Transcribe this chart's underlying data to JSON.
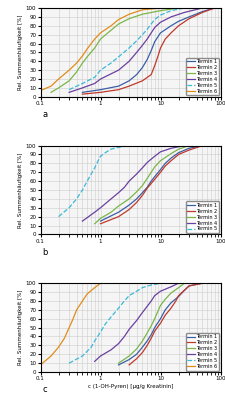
{
  "background_color": "#f5f5f5",
  "grid_color": "#cccccc",
  "ylabel": "Rel. Summenhäufigkeit [%]",
  "xlabel": "c (1-OH-Pyren) [µg/g Kreatinin]",
  "xlim": [
    0.1,
    100
  ],
  "ylim": [
    0,
    100
  ],
  "yticks": [
    0,
    10,
    20,
    30,
    40,
    50,
    60,
    70,
    80,
    90,
    100
  ],
  "colors": {
    "Termin 1": "#3b5ea6",
    "Termin 2": "#c0392b",
    "Termin 3": "#7ab648",
    "Termin 4": "#6b3fa0",
    "Termin 5": "#3ab8d8",
    "Termin 6": "#e08c1a"
  },
  "panels": [
    {
      "label": "a",
      "legend_entries": [
        "Termin 1",
        "Termin 2",
        "Termin 3",
        "Termin 4",
        "Termin 5",
        "Termin 6"
      ],
      "series": {
        "Termin 1": [
          [
            0.5,
            5
          ],
          [
            1.0,
            8
          ],
          [
            2.0,
            12
          ],
          [
            3.0,
            18
          ],
          [
            4.0,
            25
          ],
          [
            5.0,
            33
          ],
          [
            6.0,
            42
          ],
          [
            7.0,
            52
          ],
          [
            8.0,
            62
          ],
          [
            10.0,
            72
          ],
          [
            15.0,
            80
          ],
          [
            20.0,
            85
          ],
          [
            30.0,
            90
          ],
          [
            50.0,
            96
          ],
          [
            80.0,
            100
          ]
        ],
        "Termin 2": [
          [
            0.5,
            3
          ],
          [
            1.0,
            5
          ],
          [
            2.0,
            8
          ],
          [
            3.0,
            12
          ],
          [
            5.0,
            18
          ],
          [
            7.0,
            25
          ],
          [
            8.0,
            35
          ],
          [
            9.0,
            45
          ],
          [
            10.0,
            55
          ],
          [
            12.0,
            65
          ],
          [
            15.0,
            72
          ],
          [
            20.0,
            80
          ],
          [
            30.0,
            88
          ],
          [
            50.0,
            95
          ],
          [
            80.0,
            100
          ]
        ],
        "Termin 3": [
          [
            0.15,
            5
          ],
          [
            0.2,
            10
          ],
          [
            0.3,
            18
          ],
          [
            0.4,
            28
          ],
          [
            0.5,
            38
          ],
          [
            0.6,
            45
          ],
          [
            0.8,
            55
          ],
          [
            1.0,
            65
          ],
          [
            1.5,
            75
          ],
          [
            2.0,
            82
          ],
          [
            3.0,
            88
          ],
          [
            5.0,
            93
          ],
          [
            10.0,
            97
          ],
          [
            20.0,
            100
          ]
        ],
        "Termin 4": [
          [
            0.3,
            5
          ],
          [
            0.5,
            10
          ],
          [
            0.8,
            15
          ],
          [
            1.0,
            20
          ],
          [
            2.0,
            30
          ],
          [
            3.0,
            40
          ],
          [
            4.0,
            50
          ],
          [
            5.0,
            58
          ],
          [
            6.0,
            65
          ],
          [
            7.0,
            72
          ],
          [
            8.0,
            78
          ],
          [
            10.0,
            84
          ],
          [
            15.0,
            90
          ],
          [
            25.0,
            95
          ],
          [
            50.0,
            100
          ]
        ],
        "Termin 5": [
          [
            0.3,
            8
          ],
          [
            0.5,
            15
          ],
          [
            0.8,
            22
          ],
          [
            1.0,
            30
          ],
          [
            1.5,
            38
          ],
          [
            2.0,
            45
          ],
          [
            3.0,
            55
          ],
          [
            4.0,
            63
          ],
          [
            5.0,
            70
          ],
          [
            6.0,
            76
          ],
          [
            7.0,
            82
          ],
          [
            8.0,
            87
          ],
          [
            10.0,
            92
          ],
          [
            15.0,
            97
          ],
          [
            25.0,
            100
          ]
        ],
        "Termin 6": [
          [
            0.1,
            7
          ],
          [
            0.15,
            12
          ],
          [
            0.2,
            20
          ],
          [
            0.3,
            30
          ],
          [
            0.4,
            38
          ],
          [
            0.5,
            46
          ],
          [
            0.6,
            54
          ],
          [
            0.7,
            60
          ],
          [
            0.8,
            65
          ],
          [
            1.0,
            72
          ],
          [
            1.5,
            80
          ],
          [
            2.0,
            87
          ],
          [
            3.0,
            93
          ],
          [
            5.0,
            98
          ],
          [
            10.0,
            100
          ]
        ]
      },
      "dashed": [
        "Termin 5"
      ]
    },
    {
      "label": "b",
      "legend_entries": [
        "Termin 1",
        "Termin 2",
        "Termin 3",
        "Termin 4",
        "Termin 5"
      ],
      "series": {
        "Termin 1": [
          [
            1.0,
            15
          ],
          [
            2.0,
            25
          ],
          [
            3.0,
            33
          ],
          [
            4.0,
            40
          ],
          [
            5.0,
            47
          ],
          [
            6.0,
            53
          ],
          [
            7.0,
            60
          ],
          [
            8.0,
            65
          ],
          [
            10.0,
            73
          ],
          [
            12.0,
            80
          ],
          [
            15.0,
            86
          ],
          [
            20.0,
            92
          ],
          [
            30.0,
            97
          ],
          [
            50.0,
            100
          ]
        ],
        "Termin 2": [
          [
            1.0,
            12
          ],
          [
            2.0,
            20
          ],
          [
            3.0,
            28
          ],
          [
            4.0,
            36
          ],
          [
            5.0,
            44
          ],
          [
            6.0,
            52
          ],
          [
            8.0,
            62
          ],
          [
            10.0,
            70
          ],
          [
            12.0,
            77
          ],
          [
            15.0,
            83
          ],
          [
            20.0,
            90
          ],
          [
            30.0,
            95
          ],
          [
            50.0,
            100
          ]
        ],
        "Termin 3": [
          [
            0.8,
            12
          ],
          [
            1.0,
            18
          ],
          [
            1.5,
            25
          ],
          [
            2.0,
            32
          ],
          [
            3.0,
            40
          ],
          [
            4.0,
            48
          ],
          [
            5.0,
            55
          ],
          [
            6.0,
            63
          ],
          [
            7.0,
            70
          ],
          [
            8.0,
            76
          ],
          [
            10.0,
            83
          ],
          [
            15.0,
            91
          ],
          [
            20.0,
            96
          ],
          [
            30.0,
            100
          ]
        ],
        "Termin 4": [
          [
            0.5,
            15
          ],
          [
            0.8,
            25
          ],
          [
            1.0,
            30
          ],
          [
            1.5,
            40
          ],
          [
            2.0,
            47
          ],
          [
            2.5,
            53
          ],
          [
            3.0,
            60
          ],
          [
            4.0,
            68
          ],
          [
            5.0,
            75
          ],
          [
            6.0,
            81
          ],
          [
            8.0,
            88
          ],
          [
            10.0,
            93
          ],
          [
            15.0,
            97
          ],
          [
            25.0,
            100
          ]
        ],
        "Termin 5": [
          [
            0.2,
            20
          ],
          [
            0.3,
            30
          ],
          [
            0.4,
            40
          ],
          [
            0.5,
            50
          ],
          [
            0.6,
            60
          ],
          [
            0.7,
            68
          ],
          [
            0.8,
            75
          ],
          [
            0.9,
            82
          ],
          [
            1.0,
            88
          ],
          [
            1.2,
            92
          ],
          [
            1.5,
            96
          ],
          [
            2.0,
            98
          ],
          [
            3.0,
            100
          ]
        ]
      },
      "dashed": [
        "Termin 5"
      ]
    },
    {
      "label": "c",
      "legend_entries": [
        "Termin 1",
        "Termin 2",
        "Termin 3",
        "Termin 4",
        "Termin 5",
        "Termin 6"
      ],
      "series": {
        "Termin 1": [
          [
            2.0,
            8
          ],
          [
            3.0,
            14
          ],
          [
            4.0,
            20
          ],
          [
            5.0,
            28
          ],
          [
            6.0,
            35
          ],
          [
            7.0,
            42
          ],
          [
            8.0,
            50
          ],
          [
            10.0,
            60
          ],
          [
            12.0,
            70
          ],
          [
            15.0,
            78
          ],
          [
            20.0,
            85
          ],
          [
            25.0,
            92
          ],
          [
            30.0,
            97
          ],
          [
            50.0,
            100
          ]
        ],
        "Termin 2": [
          [
            3.0,
            8
          ],
          [
            4.0,
            15
          ],
          [
            5.0,
            22
          ],
          [
            6.0,
            30
          ],
          [
            7.0,
            38
          ],
          [
            8.0,
            46
          ],
          [
            10.0,
            55
          ],
          [
            12.0,
            64
          ],
          [
            15.0,
            72
          ],
          [
            18.0,
            80
          ],
          [
            20.0,
            86
          ],
          [
            25.0,
            92
          ],
          [
            30.0,
            97
          ],
          [
            50.0,
            100
          ]
        ],
        "Termin 3": [
          [
            2.0,
            10
          ],
          [
            3.0,
            18
          ],
          [
            4.0,
            26
          ],
          [
            5.0,
            35
          ],
          [
            6.0,
            44
          ],
          [
            7.0,
            52
          ],
          [
            8.0,
            60
          ],
          [
            9.0,
            68
          ],
          [
            10.0,
            75
          ],
          [
            12.0,
            82
          ],
          [
            15.0,
            89
          ],
          [
            20.0,
            95
          ],
          [
            25.0,
            100
          ]
        ],
        "Termin 4": [
          [
            0.8,
            12
          ],
          [
            1.0,
            18
          ],
          [
            1.5,
            25
          ],
          [
            2.0,
            32
          ],
          [
            2.5,
            40
          ],
          [
            3.0,
            48
          ],
          [
            4.0,
            58
          ],
          [
            5.0,
            67
          ],
          [
            6.0,
            74
          ],
          [
            7.0,
            80
          ],
          [
            8.0,
            86
          ],
          [
            10.0,
            91
          ],
          [
            15.0,
            96
          ],
          [
            20.0,
            100
          ]
        ],
        "Termin 5": [
          [
            0.3,
            10
          ],
          [
            0.5,
            18
          ],
          [
            0.7,
            28
          ],
          [
            0.8,
            35
          ],
          [
            1.0,
            45
          ],
          [
            1.2,
            54
          ],
          [
            1.5,
            62
          ],
          [
            2.0,
            72
          ],
          [
            2.5,
            80
          ],
          [
            3.0,
            86
          ],
          [
            4.0,
            91
          ],
          [
            5.0,
            95
          ],
          [
            7.0,
            98
          ],
          [
            10.0,
            100
          ]
        ],
        "Termin 6": [
          [
            0.1,
            8
          ],
          [
            0.15,
            18
          ],
          [
            0.2,
            28
          ],
          [
            0.25,
            38
          ],
          [
            0.3,
            50
          ],
          [
            0.35,
            60
          ],
          [
            0.4,
            70
          ],
          [
            0.5,
            80
          ],
          [
            0.6,
            88
          ],
          [
            0.8,
            95
          ],
          [
            1.0,
            100
          ]
        ]
      },
      "dashed": [
        "Termin 5"
      ]
    }
  ]
}
